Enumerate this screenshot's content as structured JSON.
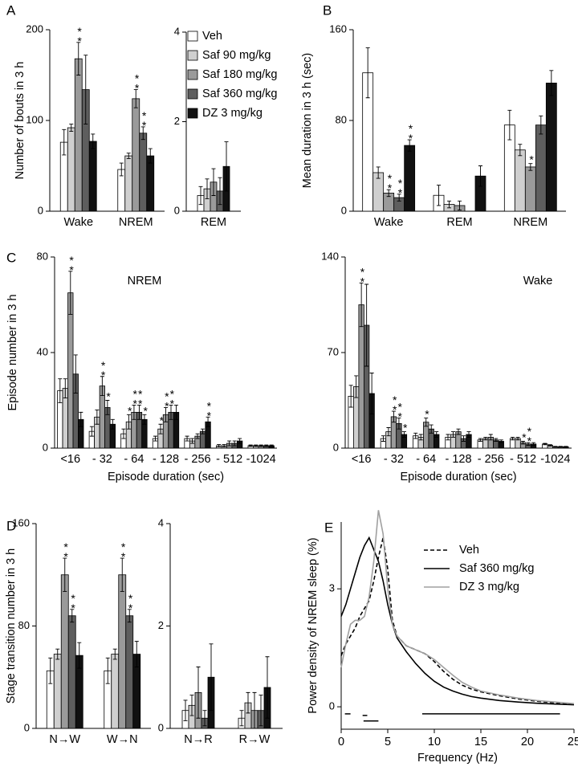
{
  "legend": {
    "names": [
      "Veh",
      "Saf 90 mg/kg",
      "Saf 180 mg/kg",
      "Saf 360 mg/kg",
      "DZ 3 mg/kg"
    ],
    "colors": [
      "#ffffff",
      "#cfcfcf",
      "#9a9a9a",
      "#5e5e5e",
      "#111111"
    ]
  },
  "chart_data": [
    {
      "type": "bar",
      "panel": "A",
      "ylabel": "Number of bouts in 3 h",
      "categories": [
        "Wake",
        "NREM"
      ],
      "ylim": [
        0,
        200
      ],
      "yticks": [
        0,
        100,
        200
      ],
      "series": [
        {
          "values": [
            76,
            46
          ],
          "errors": [
            14,
            7
          ]
        },
        {
          "values": [
            92,
            61
          ],
          "errors": [
            4,
            3
          ]
        },
        {
          "values": [
            168,
            124
          ],
          "errors": [
            18,
            10
          ],
          "significance": [
            "**",
            "**"
          ]
        },
        {
          "values": [
            134,
            86
          ],
          "errors": [
            38,
            7
          ],
          "significance": [
            null,
            "**"
          ]
        },
        {
          "values": [
            77,
            61
          ],
          "errors": [
            8,
            8
          ]
        }
      ]
    },
    {
      "type": "bar",
      "categories": [
        "REM"
      ],
      "ylim": [
        0,
        4
      ],
      "yticks": [
        0,
        2,
        4
      ],
      "series": [
        {
          "values": [
            0.35
          ],
          "errors": [
            0.2
          ]
        },
        {
          "values": [
            0.5
          ],
          "errors": [
            0.22
          ]
        },
        {
          "values": [
            0.65
          ],
          "errors": [
            0.3
          ]
        },
        {
          "values": [
            0.45
          ],
          "errors": [
            0.3
          ]
        },
        {
          "values": [
            1.0
          ],
          "errors": [
            0.55
          ]
        }
      ]
    },
    {
      "type": "bar",
      "panel": "B",
      "ylabel": "Mean duration in 3 h (sec)",
      "categories": [
        "Wake",
        "REM",
        "NREM"
      ],
      "ylim": [
        0,
        160
      ],
      "yticks": [
        0,
        80,
        160
      ],
      "series": [
        {
          "values": [
            122,
            14,
            76
          ],
          "errors": [
            22,
            9,
            13
          ]
        },
        {
          "values": [
            34,
            6,
            54
          ],
          "errors": [
            5,
            3,
            5
          ]
        },
        {
          "values": [
            16,
            5,
            39
          ],
          "errors": [
            3,
            4,
            3
          ],
          "significance": [
            "**",
            null,
            "*"
          ]
        },
        {
          "values": [
            12,
            0,
            76
          ],
          "errors": [
            3,
            0,
            8
          ],
          "significance": [
            "**",
            null,
            null
          ]
        },
        {
          "values": [
            58,
            31,
            113
          ],
          "errors": [
            5,
            9,
            11
          ],
          "significance": [
            "**",
            null,
            null
          ]
        }
      ]
    },
    {
      "type": "bar",
      "panel": "C",
      "title": "NREM",
      "ylabel": "Episode number in 3 h",
      "xlabel": "Episode duration (sec)",
      "categories": [
        "<16",
        "- 32",
        "- 64",
        "- 128",
        "- 256",
        "- 512",
        "-1024"
      ],
      "ylim": [
        0,
        80
      ],
      "yticks": [
        0,
        40,
        80
      ],
      "series": [
        {
          "values": [
            24,
            7,
            6,
            4,
            4,
            1,
            1
          ],
          "errors": [
            5,
            2,
            2,
            1,
            1,
            0.5,
            0.3
          ]
        },
        {
          "values": [
            25,
            13,
            11,
            8,
            3,
            1,
            1
          ],
          "errors": [
            4,
            3,
            3,
            2,
            1,
            0.5,
            0.3
          ],
          "significance": [
            null,
            null,
            "*",
            "*",
            null,
            null,
            null
          ]
        },
        {
          "values": [
            65,
            26,
            15,
            14,
            5,
            2,
            1
          ],
          "errors": [
            9,
            4,
            3,
            3,
            1,
            1,
            0.3
          ],
          "significance": [
            "**",
            "**",
            "**",
            "**",
            null,
            null,
            null
          ]
        },
        {
          "values": [
            31,
            17,
            15,
            15,
            7,
            2,
            1
          ],
          "errors": [
            8,
            3,
            3,
            3,
            1,
            1,
            0.3
          ],
          "significance": [
            null,
            "*",
            "**",
            "**",
            null,
            null,
            null
          ]
        },
        {
          "values": [
            12,
            10,
            12,
            15,
            11,
            3,
            1
          ],
          "errors": [
            3,
            2,
            2,
            3,
            2,
            1,
            0.3
          ],
          "significance": [
            null,
            null,
            "*",
            null,
            "**",
            null,
            null
          ]
        }
      ]
    },
    {
      "type": "bar",
      "title": "Wake",
      "xlabel": "Episode duration (sec)",
      "categories": [
        "<16",
        "- 32",
        "- 64",
        "- 128",
        "- 256",
        "- 512",
        "-1024"
      ],
      "ylim": [
        0,
        140
      ],
      "yticks": [
        0,
        70,
        140
      ],
      "series": [
        {
          "values": [
            38,
            7,
            9,
            8,
            6,
            7,
            3
          ],
          "errors": [
            8,
            2,
            2,
            2,
            1,
            1,
            0.5
          ]
        },
        {
          "values": [
            45,
            12,
            8,
            10,
            7,
            7,
            2
          ],
          "errors": [
            8,
            3,
            2,
            2,
            1,
            1,
            0.5
          ]
        },
        {
          "values": [
            105,
            23,
            19,
            12,
            8,
            4,
            1
          ],
          "errors": [
            16,
            4,
            3,
            2,
            2,
            1,
            0.3
          ],
          "significance": [
            "**",
            "**",
            "*",
            null,
            null,
            "*",
            null
          ]
        },
        {
          "values": [
            90,
            18,
            14,
            7,
            6,
            3,
            1
          ],
          "errors": [
            30,
            4,
            3,
            2,
            1,
            1,
            0.3
          ],
          "significance": [
            null,
            "**",
            null,
            null,
            null,
            "**",
            null
          ]
        },
        {
          "values": [
            40,
            10,
            10,
            10,
            5,
            3,
            1
          ],
          "errors": [
            15,
            2,
            2,
            2,
            1,
            1,
            0.3
          ],
          "significance": [
            null,
            "*",
            null,
            null,
            null,
            null,
            null
          ]
        }
      ]
    },
    {
      "type": "bar",
      "panel": "D",
      "ylabel": "Stage transition number in 3 h",
      "categories": [
        "N→W",
        "W→N"
      ],
      "ylim": [
        0,
        160
      ],
      "yticks": [
        0,
        80,
        160
      ],
      "series": [
        {
          "values": [
            45,
            45
          ],
          "errors": [
            10,
            10
          ]
        },
        {
          "values": [
            58,
            58
          ],
          "errors": [
            4,
            4
          ]
        },
        {
          "values": [
            120,
            120
          ],
          "errors": [
            13,
            13
          ],
          "significance": [
            "**",
            "**"
          ]
        },
        {
          "values": [
            88,
            88
          ],
          "errors": [
            5,
            5
          ],
          "significance": [
            "**",
            "**"
          ]
        },
        {
          "values": [
            57,
            58
          ],
          "errors": [
            10,
            10
          ]
        }
      ]
    },
    {
      "type": "bar",
      "categories": [
        "N→R",
        "R→W"
      ],
      "ylim": [
        0,
        4
      ],
      "yticks": [
        0,
        2,
        4
      ],
      "series": [
        {
          "values": [
            0.35,
            0.2
          ],
          "errors": [
            0.2,
            0.15
          ]
        },
        {
          "values": [
            0.45,
            0.5
          ],
          "errors": [
            0.2,
            0.2
          ]
        },
        {
          "values": [
            0.7,
            0.35
          ],
          "errors": [
            0.5,
            0.35
          ]
        },
        {
          "values": [
            0.2,
            0.35
          ],
          "errors": [
            0.15,
            0.3
          ]
        },
        {
          "values": [
            1.0,
            0.8
          ],
          "errors": [
            0.65,
            0.6
          ]
        }
      ]
    },
    {
      "type": "line",
      "panel": "E",
      "ylabel": "Power density of NREM sleep (%)",
      "xlabel": "Frequency (Hz)",
      "xlim": [
        0,
        25
      ],
      "xticks": [
        0,
        5,
        10,
        15,
        20,
        25
      ],
      "ylim": [
        -0.57,
        4.7
      ],
      "yticks": [
        0,
        3
      ],
      "x": [
        0,
        0.5,
        1,
        1.5,
        2,
        2.5,
        3,
        3.5,
        4,
        4.5,
        5,
        5.5,
        6,
        7,
        8,
        9,
        10,
        11,
        12,
        13,
        14,
        15,
        17,
        19,
        21,
        23,
        25
      ],
      "series": [
        {
          "name": "Veh",
          "color": "#000000",
          "linestyle": "dashed",
          "values": [
            1.3,
            1.6,
            1.8,
            2.0,
            2.3,
            2.5,
            2.7,
            3.2,
            3.8,
            4.3,
            3.5,
            2.2,
            1.8,
            1.55,
            1.45,
            1.35,
            1.15,
            0.9,
            0.7,
            0.55,
            0.45,
            0.38,
            0.28,
            0.2,
            0.14,
            0.1,
            0.07
          ]
        },
        {
          "name": "Saf 360 mg/kg",
          "color": "#000000",
          "linestyle": "solid",
          "values": [
            2.3,
            2.6,
            3.0,
            3.4,
            3.8,
            4.1,
            4.3,
            4.0,
            3.7,
            3.2,
            2.6,
            2.1,
            1.75,
            1.4,
            1.1,
            0.85,
            0.65,
            0.5,
            0.4,
            0.32,
            0.26,
            0.22,
            0.16,
            0.12,
            0.09,
            0.07,
            0.05
          ]
        },
        {
          "name": "DZ 3 mg/kg",
          "color": "#a0a0a0",
          "linestyle": "solid",
          "values": [
            1.0,
            1.6,
            2.1,
            2.2,
            2.2,
            2.3,
            2.8,
            3.7,
            5.0,
            4.4,
            3.0,
            2.1,
            1.8,
            1.55,
            1.45,
            1.35,
            1.2,
            1.0,
            0.8,
            0.62,
            0.5,
            0.4,
            0.3,
            0.22,
            0.16,
            0.12,
            0.08
          ]
        }
      ],
      "significance_ranges": [
        {
          "x": [
            0.4,
            1.0
          ],
          "y": -0.18
        },
        {
          "x": [
            8.7,
            23.5
          ],
          "y": -0.18
        },
        {
          "x": [
            2.3,
            2.8
          ],
          "y": -0.22
        },
        {
          "x": [
            2.4,
            4.0
          ],
          "y": -0.36
        }
      ]
    }
  ]
}
